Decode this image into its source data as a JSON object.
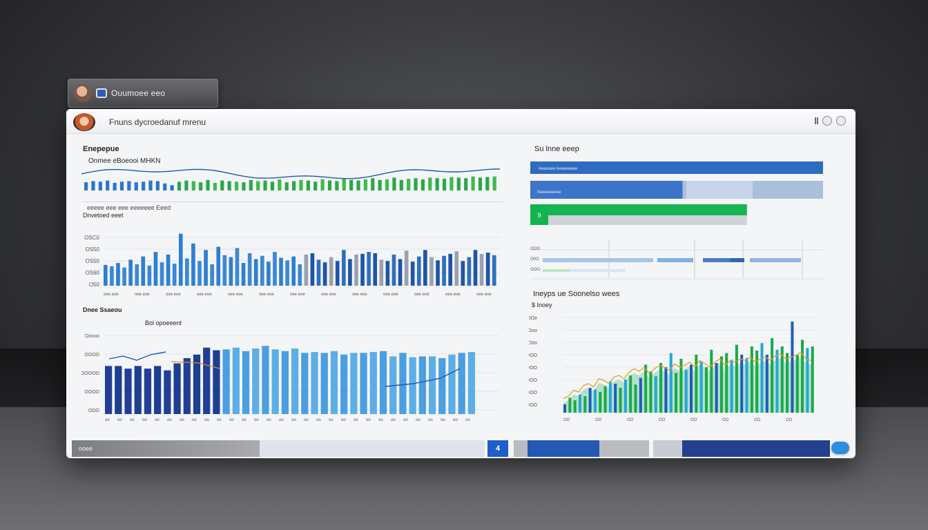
{
  "mini_window": {
    "label": "Ouumoee eeo"
  },
  "app": {
    "title": "Fnuns dycroedanuf mrenu"
  },
  "panels": {
    "top_left": {
      "title": "Enepepue",
      "subtitle": "Onmee eBoeooi MHKN",
      "chart_data": {
        "type": "bar",
        "series": [
          {
            "name": "",
            "values": [
              14,
              16,
              15,
              17,
              13,
              15,
              16,
              14,
              15,
              17,
              16,
              12,
              9,
              15,
              17,
              16,
              14,
              18,
              13,
              17,
              16,
              15,
              14,
              18,
              16,
              17,
              15,
              19,
              14,
              16,
              18,
              17,
              15,
              19,
              17,
              16,
              20,
              18,
              17,
              19,
              21,
              18,
              19,
              22,
              18,
              20,
              21,
              19,
              22,
              21,
              20,
              23,
              22,
              21,
              24,
              22,
              23,
              24
            ]
          }
        ]
      }
    },
    "middle_left": {
      "legend_text": "eeeee eee eee eeeeeee Eeed",
      "title": "Dnvetoed eeet",
      "y_ticks": [
        "OSC0",
        "OS50",
        "OS50",
        "OS60",
        "O50"
      ],
      "x_tick_label": "oee eoe",
      "chart_data": {
        "type": "bar",
        "categories": [
          "1",
          "2",
          "3",
          "4",
          "5",
          "6",
          "7",
          "8",
          "9",
          "10",
          "11",
          "12",
          "13",
          "14",
          "15",
          "16",
          "17",
          "18",
          "19",
          "20",
          "21",
          "22",
          "23",
          "24",
          "25",
          "26",
          "27",
          "28",
          "29",
          "30",
          "31",
          "32",
          "33",
          "34",
          "35",
          "36",
          "37",
          "38",
          "39",
          "40",
          "41",
          "42",
          "43",
          "44",
          "45",
          "46",
          "47",
          "48",
          "49",
          "50",
          "51",
          "52",
          "53",
          "54",
          "55",
          "56",
          "57",
          "58",
          "59",
          "60",
          "61",
          "62",
          "63"
        ],
        "values": [
          32,
          30,
          35,
          28,
          40,
          33,
          45,
          31,
          52,
          36,
          48,
          34,
          80,
          42,
          65,
          38,
          55,
          33,
          60,
          47,
          44,
          58,
          35,
          50,
          41,
          46,
          37,
          52,
          43,
          39,
          45,
          33,
          48,
          50,
          40,
          36,
          44,
          38,
          55,
          41,
          48,
          49,
          52,
          50,
          40,
          38,
          48,
          41,
          54,
          37,
          45,
          55,
          44,
          39,
          46,
          49,
          53,
          38,
          44,
          55,
          49,
          51,
          47
        ]
      }
    },
    "bottom_left": {
      "title": "Dnee Ssaeou",
      "subtitle": "Bol opoeeent",
      "y_ticks": [
        "Ooooo",
        "OOOO",
        "OOOOO",
        "OOOO",
        "ODO"
      ],
      "chart_data": {
        "type": "bar",
        "categories": [
          "1",
          "2",
          "3",
          "4",
          "5",
          "6",
          "7",
          "8",
          "9",
          "10",
          "11",
          "12",
          "13",
          "14",
          "15",
          "16",
          "17",
          "18",
          "19",
          "20",
          "21",
          "22",
          "23",
          "24",
          "25",
          "26",
          "27",
          "28",
          "29",
          "30",
          "31",
          "32",
          "33",
          "34",
          "35",
          "36",
          "37",
          "38"
        ],
        "values": [
          55,
          55,
          52,
          55,
          52,
          55,
          50,
          58,
          64,
          68,
          76,
          73,
          74,
          76,
          72,
          75,
          78,
          74,
          72,
          75,
          70,
          71,
          70,
          72,
          68,
          70,
          70,
          71,
          72,
          66,
          70,
          65,
          66,
          66,
          64,
          68,
          70,
          71
        ]
      }
    },
    "top_right": {
      "title": "Su lnne eeep",
      "rows": [
        {
          "label": "Aeeeoee Aeeeeeeee",
          "fraction": 1.0,
          "color": "#2f6bc1"
        },
        {
          "label": "Neeeeeeeoe",
          "fraction": 0.52,
          "color": "#3b74c8"
        },
        {
          "label": "9",
          "fraction": 0.74,
          "color": "#17b552"
        }
      ],
      "gantt_ticks": [
        "OOO",
        "O0O",
        "OOO"
      ]
    },
    "bottom_right": {
      "title": "Ineyps ue Soonelso wees",
      "subtitle": "$ Inoey",
      "y_ticks": [
        "OOe",
        "Ooo",
        "O0o",
        "OOO",
        "OOO",
        "OOO",
        "OOO",
        "OOO"
      ],
      "chart_data": {
        "type": "area",
        "categories": [
          "1",
          "2",
          "3",
          "4",
          "5",
          "6",
          "7",
          "8",
          "9",
          "10",
          "11",
          "12",
          "13",
          "14",
          "15",
          "16",
          "17",
          "18",
          "19",
          "20",
          "21",
          "22",
          "23",
          "24",
          "25",
          "26",
          "27",
          "28",
          "29",
          "30",
          "31",
          "32",
          "33",
          "34",
          "35",
          "36",
          "37",
          "38",
          "39",
          "40",
          "41",
          "42",
          "43",
          "44",
          "45",
          "46",
          "47",
          "48",
          "49",
          "50"
        ],
        "series": [
          {
            "name": "",
            "values": [
              10,
              18,
              15,
              22,
              20,
              30,
              28,
              25,
              32,
              38,
              35,
              30,
              40,
              45,
              34,
              42,
              58,
              50,
              44,
              60,
              55,
              72,
              48,
              65,
              52,
              58,
              70,
              62,
              55,
              76,
              60,
              68,
              72,
              64,
              82,
              70,
              66,
              80,
              75,
              84,
              70,
              90,
              76,
              80,
              72,
              110,
              70,
              88,
              78,
              80
            ]
          },
          {
            "name": "",
            "values": [
              12,
              15,
              22,
              20,
              28,
              30,
              26,
              36,
              34,
              30,
              38,
              40,
              36,
              44,
              48,
              45,
              50,
              42,
              48,
              52,
              50,
              46,
              54,
              50,
              52,
              56,
              50,
              58,
              54,
              50,
              56,
              60,
              52,
              58,
              56,
              60,
              58,
              62,
              56,
              60,
              62,
              58,
              64,
              66,
              60,
              62,
              64,
              68,
              60,
              58
            ]
          }
        ]
      }
    }
  },
  "bottom_bar": {
    "label": "ooee",
    "page_number": "4",
    "colors": {
      "blue": "#2458b5",
      "navy": "#233f8f"
    }
  }
}
